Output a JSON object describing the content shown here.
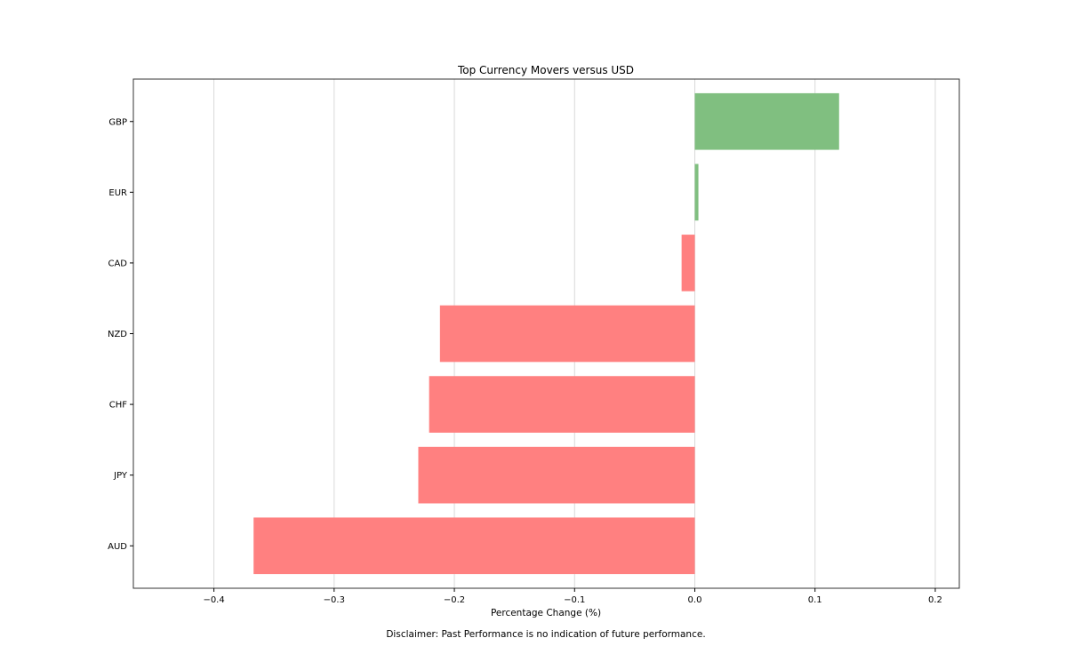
{
  "chart_data": {
    "type": "bar",
    "orientation": "horizontal",
    "title": "Top Currency Movers versus USD",
    "xlabel": "Percentage Change (%)",
    "ylabel": "",
    "categories": [
      "AUD",
      "JPY",
      "CHF",
      "NZD",
      "CAD",
      "EUR",
      "GBP"
    ],
    "values": [
      -0.367,
      -0.23,
      -0.221,
      -0.212,
      -0.011,
      0.003,
      0.12
    ],
    "xlim": [
      -0.467,
      0.22
    ],
    "xticks": [
      -0.4,
      -0.3,
      -0.2,
      -0.1,
      0.0,
      0.1,
      0.2
    ],
    "xtick_labels": [
      "−0.4",
      "−0.3",
      "−0.2",
      "−0.1",
      "0.0",
      "0.1",
      "0.2"
    ],
    "grid": "vertical",
    "colors": {
      "positive": "#80bf80",
      "negative": "#ff8080",
      "grid": "#d9d9d9",
      "frame": "#333333"
    }
  },
  "footer": {
    "disclaimer": "Disclaimer: Past Performance is no indication of future performance."
  }
}
